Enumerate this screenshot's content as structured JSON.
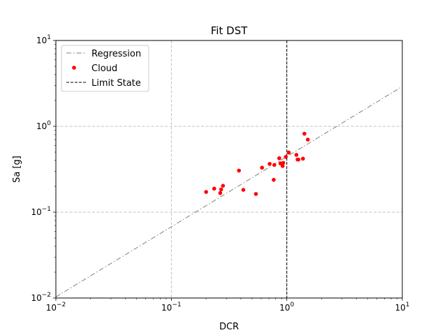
{
  "chart_data": {
    "type": "scatter",
    "title": "Fit DST",
    "xlabel": "DCR",
    "ylabel": "Sa [g]",
    "xscale": "log",
    "yscale": "log",
    "xlim": [
      0.01,
      10
    ],
    "ylim": [
      0.01,
      10
    ],
    "grid": "dashed at 1e-1 and 1e0 on both axes",
    "legend_position": "top-left",
    "xticks": [
      "10^-2",
      "10^-1",
      "10^0",
      "10^1"
    ],
    "yticks": [
      "10^-2",
      "10^-1",
      "10^0",
      "10^1"
    ],
    "series": [
      {
        "name": "Regression",
        "style": "dash-dot line",
        "color": "#808080",
        "x": [
          0.01,
          10
        ],
        "y": [
          0.0103,
          2.91
        ]
      },
      {
        "name": "Cloud",
        "style": "markers",
        "color": "#ff0000",
        "x": [
          0.2,
          0.235,
          0.265,
          0.27,
          0.28,
          0.385,
          0.42,
          0.54,
          0.61,
          0.71,
          0.77,
          0.78,
          0.86,
          0.88,
          0.92,
          0.93,
          0.98,
          1.04,
          1.21,
          1.24,
          1.26,
          1.38,
          1.42,
          1.52
        ],
        "y": [
          0.172,
          0.188,
          0.167,
          0.184,
          0.203,
          0.305,
          0.182,
          0.163,
          0.33,
          0.365,
          0.238,
          0.355,
          0.425,
          0.37,
          0.345,
          0.375,
          0.44,
          0.495,
          0.465,
          0.41,
          0.41,
          0.42,
          0.82,
          0.7
        ]
      },
      {
        "name": "Limit State",
        "style": "dashed vertical line",
        "color": "#000000",
        "x": [
          1,
          1
        ],
        "y": [
          0.01,
          10
        ]
      }
    ]
  }
}
